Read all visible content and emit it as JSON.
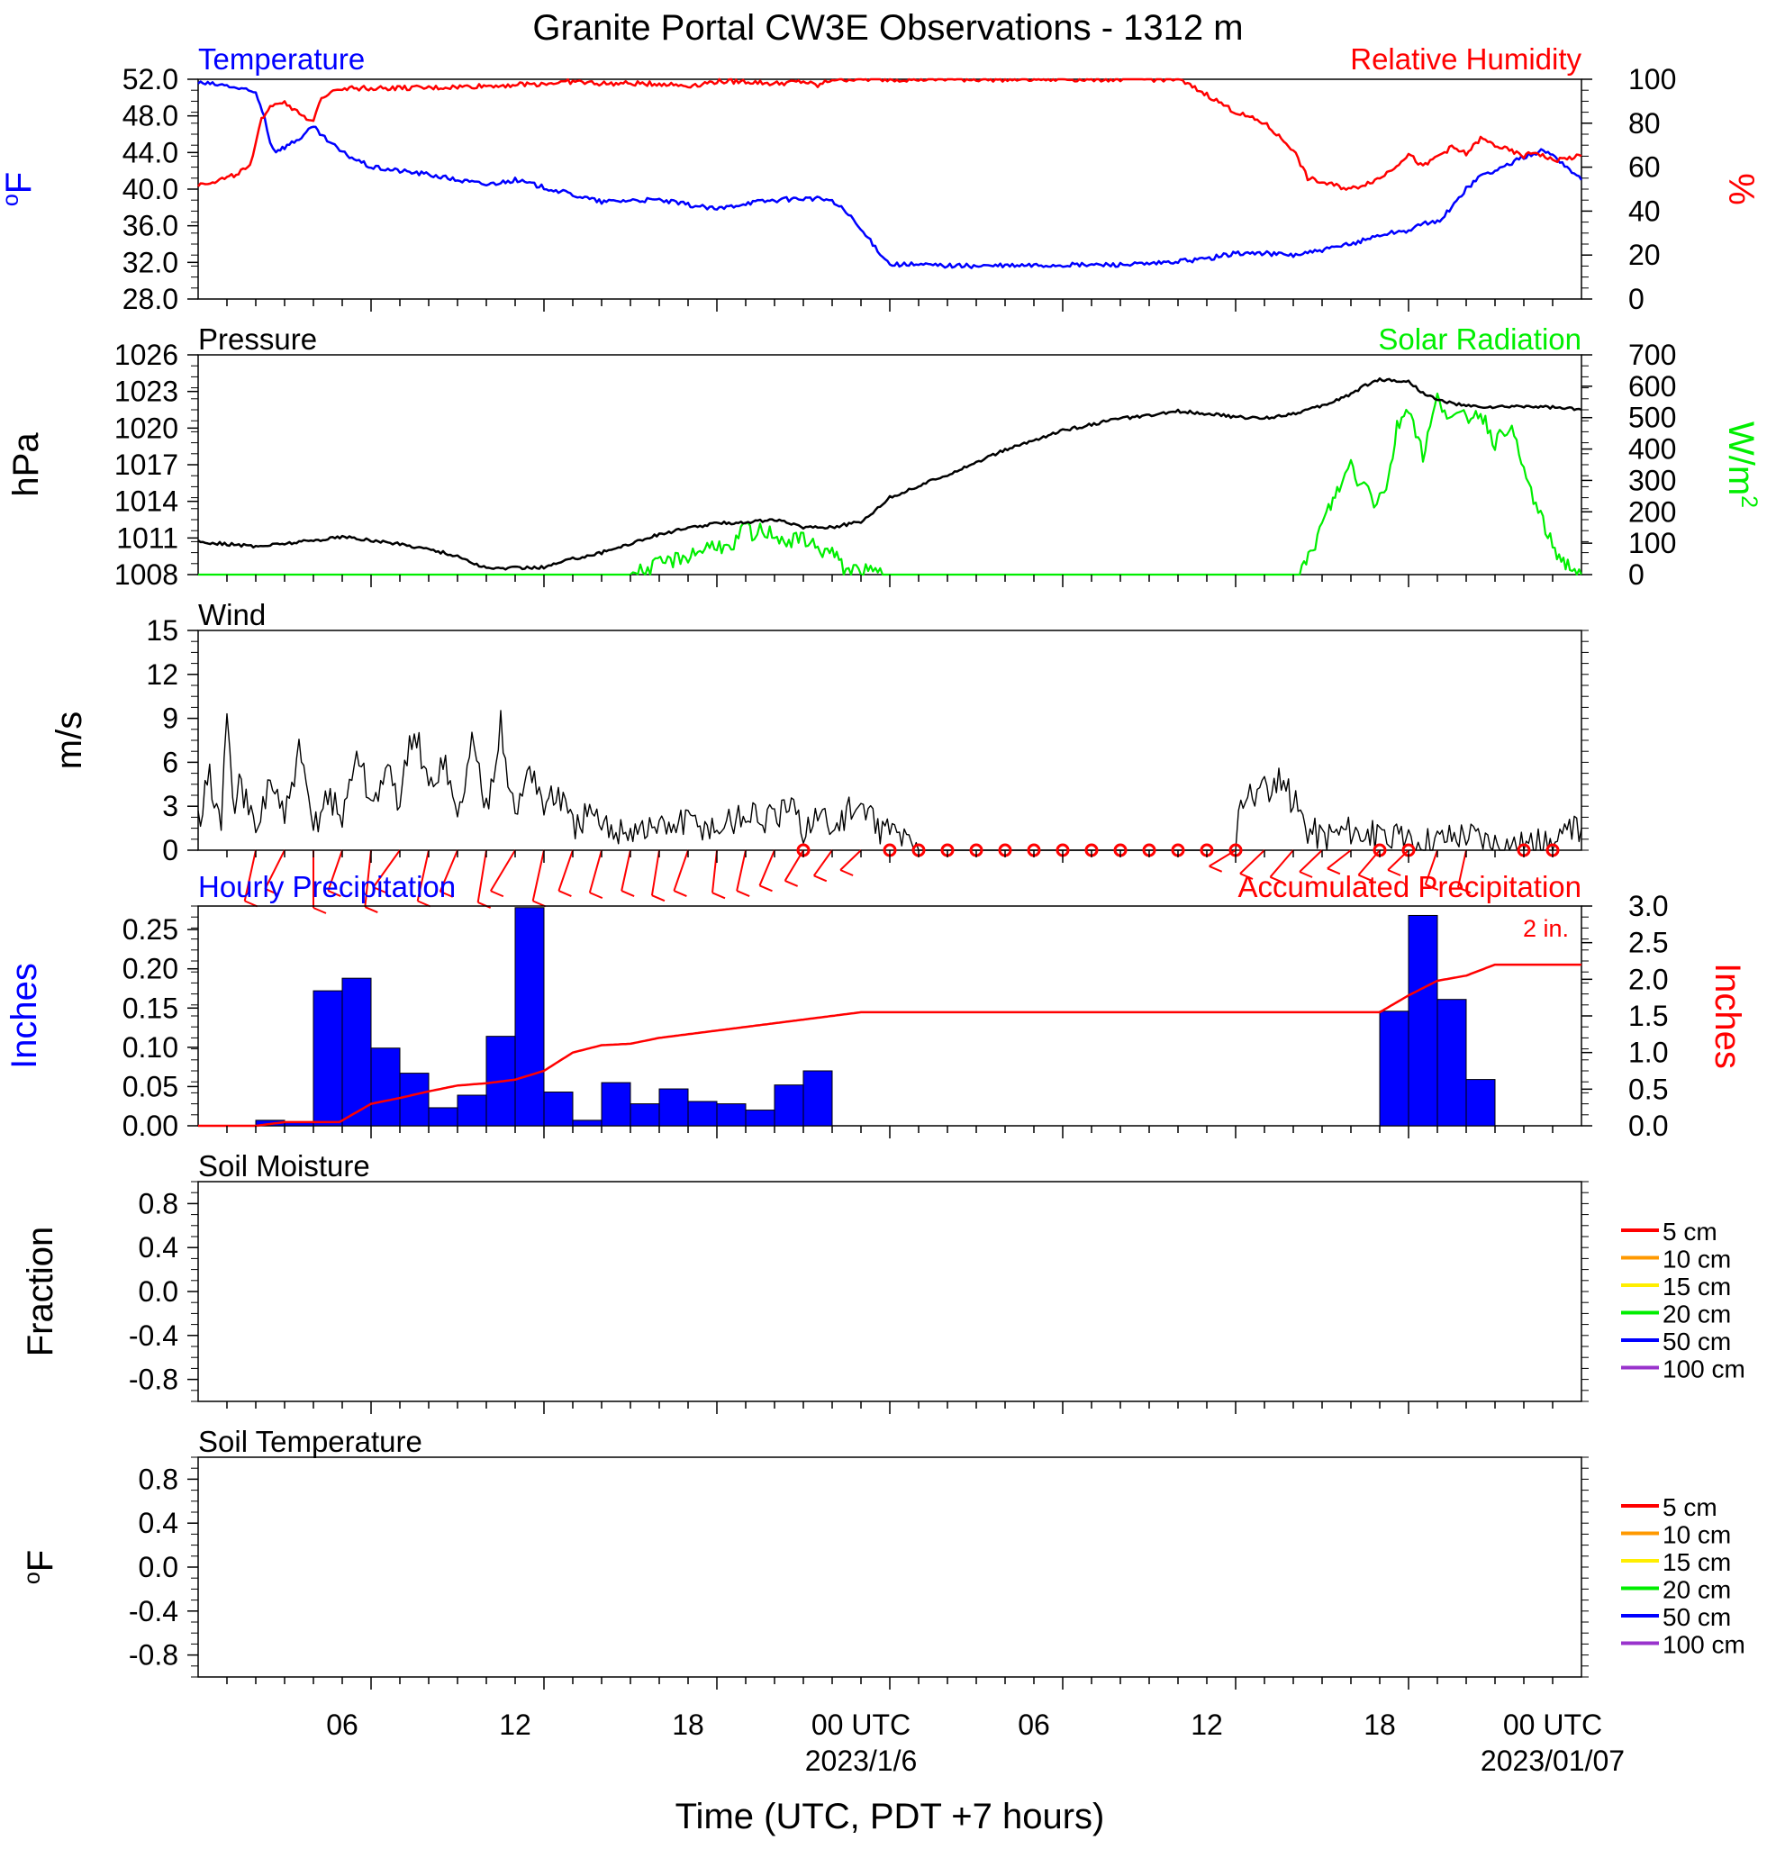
{
  "title": "Granite Portal CW3E Observations - 1312 m",
  "colors": {
    "temperature": "#0000ff",
    "humidity": "#ff0000",
    "pressure": "#000000",
    "solar": "#00ee00",
    "wind": "#000000",
    "barb": "#ff0000",
    "precip_bar": "#0000ff",
    "accum": "#ff0000",
    "sm5": "#ff0000",
    "sm10": "#ff9900",
    "sm15": "#ffee00",
    "sm20": "#00ee00",
    "sm50": "#0000ff",
    "sm100": "#9933cc"
  },
  "x_axis": {
    "label": "Time (UTC, PDT +7 hours)",
    "tick_labels": [
      "06",
      "12",
      "18",
      "00 UTC",
      "06",
      "12",
      "18",
      "00 UTC"
    ],
    "date_labels": [
      "2023/1/6",
      "2023/01/07"
    ]
  },
  "chart_data": [
    {
      "type": "line",
      "name": "temperature-humidity",
      "title_left": "Temperature",
      "title_right": "Relative Humidity",
      "ylabel_left": "oF",
      "ylabel_right": "%",
      "ylim_left": [
        28,
        52
      ],
      "ylim_right": [
        0,
        100
      ],
      "yticks_left": [
        "52.0",
        "48.0",
        "44.0",
        "40.0",
        "36.0",
        "32.0",
        "28.0"
      ],
      "yticks_right": [
        "100",
        "80",
        "60",
        "40",
        "20",
        "0"
      ],
      "x_hours": [
        0,
        48
      ],
      "series": [
        {
          "name": "Temperature",
          "axis": "left",
          "x": [
            0,
            1,
            2,
            2.3,
            2.5,
            2.7,
            3,
            3.5,
            4,
            4.3,
            5,
            6,
            7,
            8,
            9,
            10,
            11,
            12,
            13,
            14,
            15,
            16,
            17,
            18,
            19,
            20,
            21,
            21.8,
            22,
            22.4,
            24,
            27,
            30,
            33,
            35,
            36,
            37,
            38,
            39,
            40,
            40.5,
            41,
            41.5,
            42,
            42.5,
            43,
            43.5,
            44,
            44.5,
            45,
            46,
            46.6,
            47,
            48
          ],
          "y": [
            51.6,
            51.3,
            50.5,
            48,
            45,
            44.2,
            44.6,
            45.5,
            46.8,
            45.8,
            44,
            42.4,
            42,
            41.6,
            41,
            40.5,
            41,
            40.2,
            39.4,
            38.6,
            38.8,
            38.8,
            38.3,
            37.8,
            38.5,
            38.8,
            39,
            38.9,
            38.6,
            37.8,
            31.8,
            31.6,
            31.7,
            31.8,
            32.4,
            33,
            33,
            32.8,
            33.3,
            34,
            34.5,
            35,
            35.3,
            35.5,
            36.2,
            36.4,
            38,
            40,
            41.5,
            42,
            43.5,
            44.2,
            43.8,
            41
          ]
        },
        {
          "name": "Relative Humidity",
          "axis": "right",
          "x": [
            0,
            1,
            1.8,
            2,
            2.2,
            2.5,
            3,
            3.6,
            4,
            4.2,
            4.6,
            5,
            6,
            8,
            10,
            12,
            13,
            14,
            15,
            16,
            17,
            18,
            19,
            20,
            21,
            21.5,
            22,
            24,
            34,
            35,
            36,
            37,
            38,
            38.5,
            39,
            40,
            41,
            41.5,
            42,
            42.5,
            43,
            43.5,
            44,
            44.5,
            45,
            46,
            46.4,
            47,
            48
          ],
          "y": [
            52,
            55,
            60,
            70,
            82,
            88,
            90,
            83,
            80,
            90,
            95,
            96,
            96,
            96,
            97,
            98,
            99,
            98,
            98,
            98,
            97,
            99,
            99,
            98,
            99,
            97,
            100,
            100,
            100,
            93,
            85,
            80,
            68,
            55,
            53,
            50,
            55,
            60,
            66,
            60,
            65,
            69,
            66,
            73,
            70,
            65,
            67,
            63,
            65
          ]
        }
      ]
    },
    {
      "type": "line",
      "name": "pressure-solar",
      "title_left": "Pressure",
      "title_right": "Solar Radiation",
      "ylabel_left": "hPa",
      "ylabel_right": "W/m2",
      "ylim_left": [
        1008,
        1026
      ],
      "ylim_right": [
        0,
        700
      ],
      "yticks_left": [
        "1026",
        "1023",
        "1020",
        "1017",
        "1014",
        "1011",
        "1008"
      ],
      "yticks_right": [
        "700",
        "600",
        "500",
        "400",
        "300",
        "200",
        "100",
        "0"
      ],
      "series": [
        {
          "name": "Pressure",
          "axis": "left",
          "x": [
            0,
            2,
            4,
            5,
            7,
            8,
            9,
            10,
            12,
            13,
            14,
            16,
            17,
            18,
            19,
            20,
            21,
            22,
            23,
            24,
            26,
            28,
            30,
            32,
            33,
            34,
            35,
            36,
            37,
            38,
            39,
            40,
            40.5,
            41,
            42,
            42.5,
            43,
            44,
            45,
            46,
            47,
            48
          ],
          "y": [
            1010.7,
            1010.3,
            1010.8,
            1011.1,
            1010.5,
            1010.1,
            1009.5,
            1008.5,
            1008.6,
            1009.3,
            1009.8,
            1011.3,
            1011.8,
            1012.2,
            1012.3,
            1012.5,
            1011.9,
            1011.9,
            1012.3,
            1014.3,
            1016.2,
            1018.2,
            1019.8,
            1020.8,
            1021.0,
            1021.4,
            1021.2,
            1020.9,
            1020.8,
            1021.2,
            1021.8,
            1022.8,
            1023.5,
            1024.0,
            1023.8,
            1022.9,
            1022.3,
            1021.8,
            1021.7,
            1021.8,
            1021.7,
            1021.5
          ]
        },
        {
          "name": "Solar Radiation",
          "axis": "right",
          "x": [
            0,
            15,
            15.6,
            16.3,
            17,
            17.5,
            18,
            18.5,
            19,
            19.3,
            19.5,
            20,
            20.5,
            21,
            21.5,
            22,
            22.4,
            23,
            24,
            38,
            38.3,
            38.6,
            39,
            39.3,
            39.6,
            39.8,
            40,
            40.3,
            40.6,
            40.8,
            41,
            41.3,
            41.6,
            42,
            42.5,
            43,
            43.5,
            44,
            44.5,
            45,
            45.5,
            46,
            46.5,
            47,
            47.3,
            47.6,
            48
          ],
          "y": [
            0,
            0,
            20,
            40,
            60,
            80,
            100,
            70,
            160,
            110,
            140,
            130,
            100,
            120,
            80,
            70,
            20,
            10,
            0,
            0,
            20,
            60,
            160,
            220,
            280,
            310,
            360,
            280,
            300,
            230,
            250,
            300,
            470,
            540,
            380,
            560,
            500,
            500,
            520,
            420,
            480,
            330,
            200,
            90,
            50,
            25,
            0
          ]
        }
      ]
    },
    {
      "type": "line",
      "name": "wind",
      "title_left": "Wind",
      "ylabel_left": "m/s",
      "ylim_left": [
        0,
        15
      ],
      "yticks_left": [
        "15",
        "12",
        "9",
        "6",
        "3",
        "0"
      ],
      "series": [
        {
          "name": "Wind",
          "axis": "left",
          "x": [
            0,
            0.4,
            0.8,
            1,
            1.2,
            1.5,
            2,
            2.5,
            3,
            3.5,
            4,
            4.5,
            5,
            5.5,
            6,
            6.5,
            7,
            7.5,
            8,
            8.5,
            9,
            9.5,
            10,
            10.5,
            11,
            11.5,
            12,
            12.5,
            13,
            13.5,
            14,
            15,
            16,
            17,
            18,
            19,
            20,
            20.5,
            21,
            21.5,
            22,
            22.5,
            23,
            23.5,
            24,
            25,
            30,
            35,
            36,
            36.1,
            36.5,
            37,
            37.5,
            38,
            38.5,
            39,
            40,
            41,
            42,
            43,
            44,
            45,
            46,
            47,
            47.5,
            48
          ],
          "y": [
            2,
            5,
            1.5,
            9.8,
            3,
            4.5,
            1,
            5,
            2,
            6.5,
            1.5,
            4,
            2,
            7,
            3,
            5.5,
            3.5,
            8.6,
            4,
            6.5,
            2,
            7.5,
            3,
            8.5,
            2,
            6,
            3,
            4,
            1.5,
            2.5,
            1.5,
            1.5,
            1.5,
            2,
            1.5,
            2.5,
            2,
            3,
            1.5,
            2.5,
            1.5,
            2.5,
            3,
            1.5,
            1.5,
            0,
            0,
            0,
            0,
            3.5,
            3.8,
            4,
            4.5,
            3.5,
            1.5,
            1,
            1.5,
            0.8,
            0.6,
            0.8,
            1.2,
            0.6,
            0.4,
            0.4,
            1,
            1.5
          ]
        }
      ],
      "barbs": [
        {
          "hour": 2,
          "speed": 5,
          "dir": 200
        },
        {
          "hour": 3,
          "speed": 4,
          "dir": 220
        },
        {
          "hour": 4,
          "speed": 6,
          "dir": 180
        },
        {
          "hour": 5,
          "speed": 3,
          "dir": 210
        },
        {
          "hour": 6,
          "speed": 6,
          "dir": 190
        },
        {
          "hour": 7,
          "speed": 6,
          "dir": 230
        },
        {
          "hour": 8,
          "speed": 5,
          "dir": 200
        },
        {
          "hour": 9,
          "speed": 4,
          "dir": 215
        },
        {
          "hour": 10,
          "speed": 5,
          "dir": 195
        },
        {
          "hour": 11,
          "speed": 6,
          "dir": 225
        },
        {
          "hour": 12,
          "speed": 5,
          "dir": 200
        },
        {
          "hour": 13,
          "speed": 3,
          "dir": 210
        },
        {
          "hour": 14,
          "speed": 3,
          "dir": 205
        },
        {
          "hour": 15,
          "speed": 2,
          "dir": 200
        },
        {
          "hour": 16,
          "speed": 3,
          "dir": 195
        },
        {
          "hour": 17,
          "speed": 3,
          "dir": 210
        },
        {
          "hour": 18,
          "speed": 2,
          "dir": 190
        },
        {
          "hour": 19,
          "speed": 2,
          "dir": 200
        },
        {
          "hour": 20,
          "speed": 2,
          "dir": 215
        },
        {
          "hour": 21,
          "speed": 2,
          "dir": 225
        },
        {
          "hour": 22,
          "speed": 1,
          "dir": 230
        },
        {
          "hour": 23,
          "speed": 1,
          "dir": 240
        },
        {
          "hour": 36,
          "speed": 3,
          "dir": 250
        },
        {
          "hour": 37,
          "speed": 3,
          "dir": 240
        },
        {
          "hour": 38,
          "speed": 3,
          "dir": 235
        },
        {
          "hour": 39,
          "speed": 2,
          "dir": 240
        },
        {
          "hour": 40,
          "speed": 2,
          "dir": 245
        },
        {
          "hour": 41,
          "speed": 2,
          "dir": 235
        },
        {
          "hour": 42,
          "speed": 1,
          "dir": 240
        },
        {
          "hour": 43,
          "speed": 1,
          "dir": 210
        },
        {
          "hour": 44,
          "speed": 1,
          "dir": 200
        }
      ],
      "calm_hours": [
        21,
        24,
        25,
        26,
        27,
        28,
        29,
        30,
        31,
        32,
        33,
        34,
        35,
        36,
        41,
        42,
        46,
        47
      ]
    },
    {
      "type": "bar",
      "name": "precipitation",
      "title_left": "Hourly Precipitation",
      "title_right": "Accumulated Precipitation",
      "annotation": "2 in.",
      "ylabel_left": "Inches",
      "ylabel_right": "Inches",
      "ylim_left": [
        0,
        0.28
      ],
      "ylim_right": [
        0,
        3
      ],
      "yticks_left": [
        "0.25",
        "0.20",
        "0.15",
        "0.10",
        "0.05",
        "0.00"
      ],
      "yticks_right": [
        "3.0",
        "2.5",
        "2.0",
        "1.5",
        "1.0",
        "0.5",
        "0.0"
      ],
      "bars": {
        "start_hours": [
          2,
          3,
          4,
          5,
          6,
          7,
          8,
          9,
          10,
          11,
          12,
          13,
          14,
          15,
          16,
          17,
          18,
          19,
          20,
          21,
          22,
          41,
          42,
          43,
          44
        ],
        "values": [
          0.007,
          0.004,
          0.172,
          0.188,
          0.099,
          0.067,
          0.023,
          0.039,
          0.114,
          0.278,
          0.043,
          0.007,
          0.055,
          0.028,
          0.047,
          0.031,
          0.028,
          0.02,
          0.052,
          0.07,
          0,
          0.146,
          0.268,
          0.161,
          0.059
        ]
      },
      "series": [
        {
          "name": "Accumulated Precipitation",
          "axis": "right",
          "x": [
            0,
            2,
            3,
            4.9,
            6,
            7,
            8,
            9,
            10,
            11,
            12,
            13,
            14,
            15,
            16,
            17,
            18,
            19,
            20,
            21,
            22,
            23,
            24,
            41,
            42,
            43,
            44,
            45,
            48
          ],
          "y": [
            0,
            0,
            0.05,
            0.05,
            0.3,
            0.38,
            0.47,
            0.55,
            0.58,
            0.63,
            0.75,
            1.0,
            1.1,
            1.12,
            1.2,
            1.25,
            1.3,
            1.35,
            1.4,
            1.45,
            1.5,
            1.55,
            1.55,
            1.55,
            1.78,
            1.98,
            2.05,
            2.2,
            2.2
          ]
        }
      ]
    },
    {
      "type": "line",
      "name": "soil-moisture",
      "title_left": "Soil Moisture",
      "ylabel_left": "Fraction",
      "ylim_left": [
        -1,
        1
      ],
      "yticks_left": [
        "0.8",
        "0.4",
        "0.0",
        "-0.4",
        "-0.8"
      ],
      "legend": [
        "5 cm",
        "10 cm",
        "15 cm",
        "20 cm",
        "50 cm",
        "100 cm"
      ],
      "series": []
    },
    {
      "type": "line",
      "name": "soil-temperature",
      "title_left": "Soil Temperature",
      "ylabel_left": "oF",
      "ylim_left": [
        -1,
        1
      ],
      "yticks_left": [
        "0.8",
        "0.4",
        "0.0",
        "-0.4",
        "-0.8"
      ],
      "legend": [
        "5 cm",
        "10 cm",
        "15 cm",
        "20 cm",
        "50 cm",
        "100 cm"
      ],
      "series": []
    }
  ]
}
